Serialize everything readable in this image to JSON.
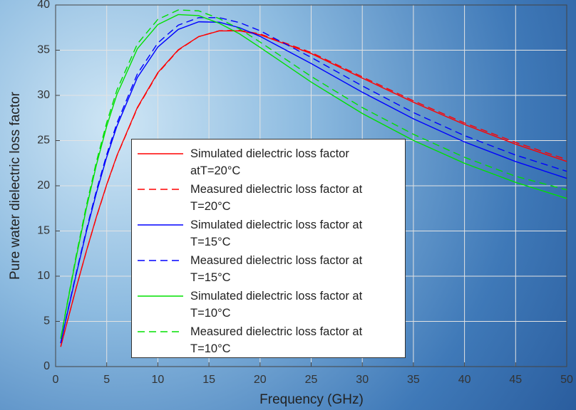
{
  "chart_data": {
    "type": "line",
    "x_label": "Frequency (GHz)",
    "y_label": "Pure water dielectric loss factor",
    "x": [
      0.5,
      1,
      2,
      3,
      4,
      5,
      6,
      8,
      10,
      12,
      14,
      16,
      18,
      20,
      25,
      30,
      35,
      40,
      45,
      50
    ],
    "series": [
      {
        "name": "Simulated dielectric loss factor atT=20°C",
        "color": "#ff0000",
        "dashed": false,
        "values": [
          2.19,
          4.36,
          8.65,
          12.73,
          16.59,
          20.14,
          23.35,
          28.67,
          32.52,
          35.05,
          36.5,
          37.13,
          37.14,
          36.71,
          34.63,
          31.91,
          29.24,
          26.78,
          24.6,
          22.69
        ]
      },
      {
        "name": "Measured dielectric loss factor at T=20°C",
        "color": "#ff0000",
        "dashed": true,
        "values": [
          2.2,
          4.37,
          8.66,
          12.72,
          16.55,
          20.1,
          23.3,
          28.6,
          32.45,
          35.0,
          36.5,
          37.15,
          37.2,
          36.8,
          34.75,
          32.05,
          29.4,
          26.95,
          24.8,
          22.9
        ]
      },
      {
        "name": "Simulated dielectric loss factor at T=15°C",
        "color": "#0000ff",
        "dashed": false,
        "values": [
          2.58,
          5.15,
          10.13,
          14.88,
          19.25,
          23.17,
          26.6,
          31.98,
          35.35,
          37.3,
          38.14,
          38.09,
          37.48,
          36.53,
          33.52,
          30.35,
          27.41,
          24.85,
          22.68,
          20.82
        ]
      },
      {
        "name": "Measured dielectric loss factor at T=15°C",
        "color": "#0000ff",
        "dashed": true,
        "values": [
          2.62,
          5.22,
          10.27,
          15.07,
          19.5,
          23.46,
          26.93,
          32.38,
          35.8,
          37.77,
          38.6,
          38.6,
          38.05,
          37.15,
          34.2,
          31.05,
          28.1,
          25.55,
          23.4,
          21.6
        ]
      },
      {
        "name": "Simulated dielectric loss factor at T=10°C",
        "color": "#00e000",
        "dashed": false,
        "values": [
          3.07,
          6.09,
          12.0,
          17.45,
          22.35,
          26.59,
          30.12,
          35.16,
          37.83,
          38.94,
          38.82,
          37.98,
          36.8,
          35.31,
          31.47,
          28.0,
          25.02,
          22.49,
          20.38,
          18.6
        ]
      },
      {
        "name": "Measured dielectric loss factor at T=10°C",
        "color": "#00e000",
        "dashed": true,
        "values": [
          3.12,
          6.18,
          12.2,
          17.75,
          22.7,
          27.0,
          30.6,
          35.7,
          38.4,
          39.45,
          39.35,
          38.5,
          37.35,
          35.9,
          32.1,
          28.65,
          25.7,
          23.15,
          21.05,
          19.55
        ]
      }
    ],
    "xlim": [
      0,
      50
    ],
    "xticks": [
      0,
      5,
      10,
      15,
      20,
      25,
      30,
      35,
      40,
      45,
      50
    ],
    "ylim": [
      0,
      40
    ],
    "yticks": [
      0,
      5,
      10,
      15,
      20,
      25,
      30,
      35,
      40
    ],
    "grid": true
  }
}
